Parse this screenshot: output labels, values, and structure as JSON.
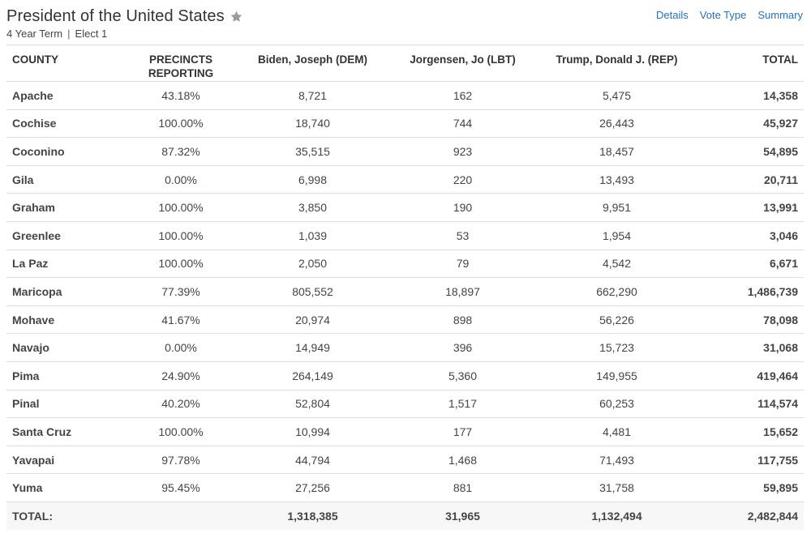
{
  "header": {
    "title": "President of the United States",
    "term": "4 Year Term",
    "separator": "|",
    "elect": "Elect 1"
  },
  "links": {
    "details": "Details",
    "vote_type": "Vote Type",
    "summary": "Summary"
  },
  "table": {
    "columns": {
      "county": "COUNTY",
      "precincts": "PRECINCTS REPORTING",
      "biden": "Biden, Joseph (DEM)",
      "jorgensen": "Jorgensen, Jo (LBT)",
      "trump": "Trump, Donald J. (REP)",
      "total": "TOTAL"
    },
    "rows": [
      {
        "county": "Apache",
        "precincts": "43.18%",
        "biden": "8,721",
        "jorgensen": "162",
        "trump": "5,475",
        "total": "14,358"
      },
      {
        "county": "Cochise",
        "precincts": "100.00%",
        "biden": "18,740",
        "jorgensen": "744",
        "trump": "26,443",
        "total": "45,927"
      },
      {
        "county": "Coconino",
        "precincts": "87.32%",
        "biden": "35,515",
        "jorgensen": "923",
        "trump": "18,457",
        "total": "54,895"
      },
      {
        "county": "Gila",
        "precincts": "0.00%",
        "biden": "6,998",
        "jorgensen": "220",
        "trump": "13,493",
        "total": "20,711"
      },
      {
        "county": "Graham",
        "precincts": "100.00%",
        "biden": "3,850",
        "jorgensen": "190",
        "trump": "9,951",
        "total": "13,991"
      },
      {
        "county": "Greenlee",
        "precincts": "100.00%",
        "biden": "1,039",
        "jorgensen": "53",
        "trump": "1,954",
        "total": "3,046"
      },
      {
        "county": "La Paz",
        "precincts": "100.00%",
        "biden": "2,050",
        "jorgensen": "79",
        "trump": "4,542",
        "total": "6,671"
      },
      {
        "county": "Maricopa",
        "precincts": "77.39%",
        "biden": "805,552",
        "jorgensen": "18,897",
        "trump": "662,290",
        "total": "1,486,739"
      },
      {
        "county": "Mohave",
        "precincts": "41.67%",
        "biden": "20,974",
        "jorgensen": "898",
        "trump": "56,226",
        "total": "78,098"
      },
      {
        "county": "Navajo",
        "precincts": "0.00%",
        "biden": "14,949",
        "jorgensen": "396",
        "trump": "15,723",
        "total": "31,068"
      },
      {
        "county": "Pima",
        "precincts": "24.90%",
        "biden": "264,149",
        "jorgensen": "5,360",
        "trump": "149,955",
        "total": "419,464"
      },
      {
        "county": "Pinal",
        "precincts": "40.20%",
        "biden": "52,804",
        "jorgensen": "1,517",
        "trump": "60,253",
        "total": "114,574"
      },
      {
        "county": "Santa Cruz",
        "precincts": "100.00%",
        "biden": "10,994",
        "jorgensen": "177",
        "trump": "4,481",
        "total": "15,652"
      },
      {
        "county": "Yavapai",
        "precincts": "97.78%",
        "biden": "44,794",
        "jorgensen": "1,468",
        "trump": "71,493",
        "total": "117,755"
      },
      {
        "county": "Yuma",
        "precincts": "95.45%",
        "biden": "27,256",
        "jorgensen": "881",
        "trump": "31,758",
        "total": "59,895"
      }
    ],
    "totals": {
      "label": "TOTAL:",
      "precincts": "",
      "biden": "1,318,385",
      "jorgensen": "31,965",
      "trump": "1,132,494",
      "total": "2,482,844"
    }
  },
  "icons": {
    "favorite": "star-icon"
  },
  "colors": {
    "link": "#2f6fb0",
    "star": "#9a9a9a",
    "text": "#333333",
    "row_border": "#dddddd"
  }
}
